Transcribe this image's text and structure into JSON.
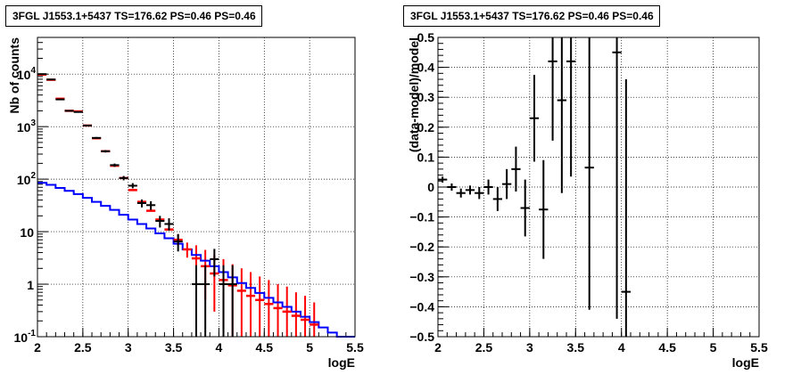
{
  "chart_data": [
    {
      "type": "step",
      "title": "3FGL J1553.1+5437 TS=176.62 PS=0.46 PS=0.46",
      "xlabel": "logE",
      "ylabel": "Nb of counts",
      "xlim": [
        2,
        5.5
      ],
      "ylim": [
        0.1,
        50000
      ],
      "yscale": "log",
      "grid": true,
      "x_ticks": [
        "2",
        "2.5",
        "3",
        "3.5",
        "4",
        "4.5",
        "5",
        "5.5"
      ],
      "y_ticks": [
        {
          "v": 0.1,
          "label": "10",
          "exp": "-1"
        },
        {
          "v": 1,
          "label": "1",
          "exp": ""
        },
        {
          "v": 10,
          "label": "10",
          "exp": ""
        },
        {
          "v": 100,
          "label": "10",
          "exp": "2"
        },
        {
          "v": 1000,
          "label": "10",
          "exp": "3"
        },
        {
          "v": 10000,
          "label": "10",
          "exp": "4"
        }
      ],
      "colors": {
        "model": "#ff0000",
        "component": "#0000ff",
        "data": "#000000"
      },
      "model_step": [
        {
          "x0": 2.0,
          "x1": 2.1,
          "y": 9800
        },
        {
          "x0": 2.1,
          "x1": 2.2,
          "y": 7800
        },
        {
          "x0": 2.2,
          "x1": 2.3,
          "y": 3400
        },
        {
          "x0": 2.3,
          "x1": 2.4,
          "y": 2000
        },
        {
          "x0": 2.4,
          "x1": 2.5,
          "y": 1950
        },
        {
          "x0": 2.5,
          "x1": 2.6,
          "y": 1050
        },
        {
          "x0": 2.6,
          "x1": 2.7,
          "y": 600
        },
        {
          "x0": 2.7,
          "x1": 2.8,
          "y": 340
        },
        {
          "x0": 2.8,
          "x1": 2.9,
          "y": 180
        },
        {
          "x0": 2.9,
          "x1": 3.0,
          "y": 105
        },
        {
          "x0": 3.0,
          "x1": 3.1,
          "y": 62
        },
        {
          "x0": 3.1,
          "x1": 3.2,
          "y": 37
        },
        {
          "x0": 3.2,
          "x1": 3.3,
          "y": 25
        },
        {
          "x0": 3.3,
          "x1": 3.4,
          "y": 17
        },
        {
          "x0": 3.4,
          "x1": 3.5,
          "y": 11
        },
        {
          "x0": 3.5,
          "x1": 3.6,
          "y": 7
        },
        {
          "x0": 3.6,
          "x1": 3.7,
          "y": 4.6
        },
        {
          "x0": 3.7,
          "x1": 3.8,
          "y": 3.1
        },
        {
          "x0": 3.8,
          "x1": 3.9,
          "y": 2.2
        },
        {
          "x0": 3.9,
          "x1": 4.0,
          "y": 1.6
        },
        {
          "x0": 4.0,
          "x1": 4.1,
          "y": 1.2
        },
        {
          "x0": 4.1,
          "x1": 4.2,
          "y": 0.95
        },
        {
          "x0": 4.2,
          "x1": 4.3,
          "y": 0.75
        },
        {
          "x0": 4.3,
          "x1": 4.4,
          "y": 0.6
        },
        {
          "x0": 4.4,
          "x1": 4.5,
          "y": 0.5
        },
        {
          "x0": 4.5,
          "x1": 4.6,
          "y": 0.42
        },
        {
          "x0": 4.6,
          "x1": 4.7,
          "y": 0.35
        },
        {
          "x0": 4.7,
          "x1": 4.8,
          "y": 0.3
        },
        {
          "x0": 4.8,
          "x1": 4.9,
          "y": 0.25
        },
        {
          "x0": 4.9,
          "x1": 5.0,
          "y": 0.21
        },
        {
          "x0": 5.0,
          "x1": 5.1,
          "y": 0.17
        }
      ],
      "model_errors": [
        {
          "x": 3.55,
          "lo": 5.5,
          "hi": 9
        },
        {
          "x": 3.65,
          "lo": 3.2,
          "hi": 6.2
        },
        {
          "x": 3.75,
          "lo": 0.8,
          "hi": 5.5
        },
        {
          "x": 3.85,
          "lo": 0.5,
          "hi": 4.5
        },
        {
          "x": 3.95,
          "lo": 0.3,
          "hi": 3.6
        },
        {
          "x": 4.05,
          "lo": 0.12,
          "hi": 3
        },
        {
          "x": 4.15,
          "lo": 0.1,
          "hi": 2.4
        },
        {
          "x": 4.25,
          "lo": 0.1,
          "hi": 2
        },
        {
          "x": 4.35,
          "lo": 0.1,
          "hi": 1.7
        },
        {
          "x": 4.45,
          "lo": 0.1,
          "hi": 1.4
        },
        {
          "x": 4.55,
          "lo": 0.1,
          "hi": 1.2
        },
        {
          "x": 4.65,
          "lo": 0.1,
          "hi": 1
        },
        {
          "x": 4.75,
          "lo": 0.1,
          "hi": 0.9
        },
        {
          "x": 4.85,
          "lo": 0.1,
          "hi": 0.7
        },
        {
          "x": 4.95,
          "lo": 0.1,
          "hi": 0.6
        },
        {
          "x": 5.05,
          "lo": 0.1,
          "hi": 0.45
        }
      ],
      "component_step": [
        {
          "x0": 2.0,
          "x1": 2.1,
          "y": 85
        },
        {
          "x0": 2.1,
          "x1": 2.2,
          "y": 78
        },
        {
          "x0": 2.2,
          "x1": 2.3,
          "y": 68
        },
        {
          "x0": 2.3,
          "x1": 2.4,
          "y": 60
        },
        {
          "x0": 2.4,
          "x1": 2.5,
          "y": 52
        },
        {
          "x0": 2.5,
          "x1": 2.6,
          "y": 44
        },
        {
          "x0": 2.6,
          "x1": 2.7,
          "y": 37
        },
        {
          "x0": 2.7,
          "x1": 2.8,
          "y": 31
        },
        {
          "x0": 2.8,
          "x1": 2.9,
          "y": 26
        },
        {
          "x0": 2.9,
          "x1": 3.0,
          "y": 21
        },
        {
          "x0": 3.0,
          "x1": 3.1,
          "y": 17
        },
        {
          "x0": 3.1,
          "x1": 3.2,
          "y": 14
        },
        {
          "x0": 3.2,
          "x1": 3.3,
          "y": 11.5
        },
        {
          "x0": 3.3,
          "x1": 3.4,
          "y": 9.3
        },
        {
          "x0": 3.4,
          "x1": 3.5,
          "y": 7.5
        },
        {
          "x0": 3.5,
          "x1": 3.6,
          "y": 5.9
        },
        {
          "x0": 3.6,
          "x1": 3.7,
          "y": 4.6
        },
        {
          "x0": 3.7,
          "x1": 3.8,
          "y": 3.6
        },
        {
          "x0": 3.8,
          "x1": 3.9,
          "y": 2.8
        },
        {
          "x0": 3.9,
          "x1": 4.0,
          "y": 2.2
        },
        {
          "x0": 4.0,
          "x1": 4.1,
          "y": 1.7
        },
        {
          "x0": 4.1,
          "x1": 4.2,
          "y": 1.35
        },
        {
          "x0": 4.2,
          "x1": 4.3,
          "y": 1.05
        },
        {
          "x0": 4.3,
          "x1": 4.4,
          "y": 0.85
        },
        {
          "x0": 4.4,
          "x1": 4.5,
          "y": 0.68
        },
        {
          "x0": 4.5,
          "x1": 4.6,
          "y": 0.55
        },
        {
          "x0": 4.6,
          "x1": 4.7,
          "y": 0.45
        },
        {
          "x0": 4.7,
          "x1": 4.8,
          "y": 0.37
        },
        {
          "x0": 4.8,
          "x1": 4.9,
          "y": 0.3
        },
        {
          "x0": 4.9,
          "x1": 5.0,
          "y": 0.24
        },
        {
          "x0": 5.0,
          "x1": 5.1,
          "y": 0.19
        },
        {
          "x0": 5.1,
          "x1": 5.2,
          "y": 0.15
        },
        {
          "x0": 5.2,
          "x1": 5.3,
          "y": 0.12
        },
        {
          "x0": 5.3,
          "x1": 5.5,
          "y": 0.1
        }
      ],
      "data_points": [
        {
          "x": 2.05,
          "y": 10000,
          "lo": 9800,
          "hi": 10200
        },
        {
          "x": 2.15,
          "y": 7900,
          "lo": 7800,
          "hi": 8000
        },
        {
          "x": 2.25,
          "y": 3300,
          "lo": 3250,
          "hi": 3360
        },
        {
          "x": 2.35,
          "y": 2000,
          "lo": 1960,
          "hi": 2040
        },
        {
          "x": 2.45,
          "y": 1900,
          "lo": 1860,
          "hi": 1940
        },
        {
          "x": 2.55,
          "y": 1050,
          "lo": 1020,
          "hi": 1080
        },
        {
          "x": 2.65,
          "y": 610,
          "lo": 585,
          "hi": 635
        },
        {
          "x": 2.75,
          "y": 340,
          "lo": 322,
          "hi": 358
        },
        {
          "x": 2.85,
          "y": 185,
          "lo": 172,
          "hi": 198
        },
        {
          "x": 2.95,
          "y": 105,
          "lo": 95,
          "hi": 115
        },
        {
          "x": 3.05,
          "y": 75,
          "lo": 67,
          "hi": 84
        },
        {
          "x": 3.15,
          "y": 35,
          "lo": 29,
          "hi": 41
        },
        {
          "x": 3.25,
          "y": 32,
          "lo": 26,
          "hi": 38
        },
        {
          "x": 3.35,
          "y": 16,
          "lo": 12,
          "hi": 20
        },
        {
          "x": 3.45,
          "y": 14,
          "lo": 10.5,
          "hi": 18
        },
        {
          "x": 3.55,
          "y": 6.5,
          "lo": 4.2,
          "hi": 9
        },
        {
          "x": 3.75,
          "y": 1,
          "lo": 0.1,
          "hi": 2.3
        },
        {
          "x": 3.85,
          "y": 1,
          "lo": 0.1,
          "hi": 2.3
        },
        {
          "x": 3.95,
          "y": 3,
          "lo": 1.4,
          "hi": 4.7
        },
        {
          "x": 4.05,
          "y": 1,
          "lo": 0.1,
          "hi": 2.3
        },
        {
          "x": 4.15,
          "y": 1,
          "lo": 0.1,
          "hi": 2.3
        }
      ]
    },
    {
      "type": "scatter",
      "title": "3FGL J1553.1+5437 TS=176.62 PS=0.46 PS=0.46",
      "xlabel": "logE",
      "ylabel": "(data-model)/model",
      "xlim": [
        2,
        5.5
      ],
      "ylim": [
        -0.5,
        0.5
      ],
      "grid": true,
      "x_ticks": [
        "2",
        "2.5",
        "3",
        "3.5",
        "4",
        "4.5",
        "5",
        "5.5"
      ],
      "y_ticks": [
        "0.5",
        "0.4",
        "0.3",
        "0.2",
        "0.1",
        "0",
        "−0.1",
        "−0.2",
        "−0.3",
        "−0.4",
        "−0.5"
      ],
      "points": [
        {
          "x": 2.05,
          "y": 0.025,
          "err": 0.01
        },
        {
          "x": 2.15,
          "y": 0.0,
          "err": 0.012
        },
        {
          "x": 2.25,
          "y": -0.02,
          "err": 0.015
        },
        {
          "x": 2.35,
          "y": -0.01,
          "err": 0.015
        },
        {
          "x": 2.45,
          "y": -0.02,
          "err": 0.02
        },
        {
          "x": 2.55,
          "y": 0.0,
          "err": 0.025
        },
        {
          "x": 2.65,
          "y": -0.04,
          "err": 0.04
        },
        {
          "x": 2.75,
          "y": 0.01,
          "err": 0.05
        },
        {
          "x": 2.85,
          "y": 0.06,
          "err": 0.075
        },
        {
          "x": 2.95,
          "y": -0.07,
          "err": 0.095
        },
        {
          "x": 3.05,
          "y": 0.23,
          "err": 0.145
        },
        {
          "x": 3.15,
          "y": -0.075,
          "err": 0.165
        },
        {
          "x": 3.25,
          "y": 0.42,
          "err": 0.265
        },
        {
          "x": 3.35,
          "y": 0.29,
          "err": 0.31
        },
        {
          "x": 3.45,
          "y": 0.42,
          "err": 0.385
        },
        {
          "x": 3.65,
          "y": 0.065,
          "err": 0.475
        },
        {
          "x": 3.95,
          "y": 0.45,
          "err": 0.89
        },
        {
          "x": 4.05,
          "y": -0.35,
          "err": 0.71
        }
      ]
    }
  ]
}
